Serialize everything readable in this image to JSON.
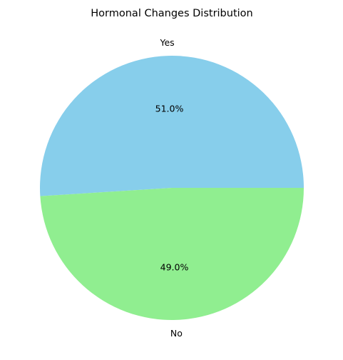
{
  "chart_data": {
    "type": "pie",
    "title": "Hormonal Changes Distribution",
    "categories": [
      "Yes",
      "No"
    ],
    "values": [
      51.0,
      49.0
    ],
    "percent_labels": [
      "51.0%",
      "49.0%"
    ],
    "colors": [
      "#87CEEB",
      "#90EE90"
    ],
    "start_angle_deg": 0,
    "direction": "counterclockwise",
    "legend": "none"
  }
}
